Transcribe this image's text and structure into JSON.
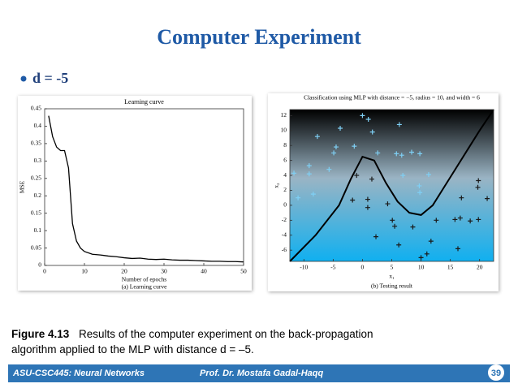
{
  "slide": {
    "title": "Computer Experiment",
    "bullet": "d = -5"
  },
  "chart_data": [
    {
      "type": "line",
      "title": "Learning curve",
      "x_label": "Number of epochs",
      "y_label": "MSE",
      "caption": "(a) Learning curve",
      "color": "#000000",
      "x": [
        1,
        2,
        3,
        4,
        5,
        6,
        7,
        8,
        9,
        10,
        12,
        14,
        16,
        18,
        20,
        22,
        24,
        26,
        28,
        30,
        32,
        34,
        36,
        38,
        40,
        42,
        44,
        46,
        48,
        50
      ],
      "values": [
        0.43,
        0.37,
        0.34,
        0.33,
        0.33,
        0.28,
        0.12,
        0.07,
        0.05,
        0.04,
        0.032,
        0.03,
        0.027,
        0.025,
        0.022,
        0.02,
        0.021,
        0.018,
        0.017,
        0.018,
        0.016,
        0.015,
        0.015,
        0.014,
        0.013,
        0.012,
        0.012,
        0.011,
        0.011,
        0.01
      ],
      "xlim": [
        0,
        50
      ],
      "xticks": [
        0,
        10,
        20,
        30,
        40,
        50
      ],
      "ylim": [
        0,
        0.45
      ],
      "yticks": [
        0,
        0.05,
        0.1,
        0.15,
        0.2,
        0.25,
        0.3,
        0.35,
        0.4,
        0.45
      ]
    },
    {
      "type": "scatter",
      "title": "Classification using MLP with distance = −5, radius = 10, and width = 6",
      "x_label": "x₁",
      "y_label": "x₂",
      "caption": "(b) Testing result",
      "xlim": [
        -12.4,
        22.4
      ],
      "xticks": [
        -10,
        -5,
        0,
        5,
        10,
        15,
        20
      ],
      "ylim": [
        -7.5,
        12.8
      ],
      "yticks": [
        -6,
        -4,
        -2,
        0,
        2,
        4,
        6,
        8,
        10,
        12
      ],
      "series": [
        {
          "color": "#7fd0f5",
          "x": [
            9.8,
            11.3,
            6.9,
            8.4,
            5.8,
            6.3,
            2.6,
            1.7,
            0,
            -1.4,
            -3.8,
            -4.5,
            -7.7,
            -5.7,
            -9.1,
            -11.7,
            -8.4,
            -11,
            6.7,
            1.0,
            -4.9,
            9.7,
            9.8,
            -9.1
          ],
          "values": [
            1.7,
            4.1,
            4.0,
            7.1,
            6.9,
            10.8,
            7.0,
            9.8,
            12,
            7.9,
            10.3,
            7.8,
            9.2,
            4.8,
            5.3,
            4.3,
            1.5,
            1.0,
            6.7,
            11.5,
            7.0,
            2.6,
            6.9,
            4.2
          ]
        },
        {
          "color": "#1a1a1a",
          "x": [
            19.8,
            21.3,
            16.9,
            18.4,
            15.8,
            16.3,
            12.6,
            11.7,
            10,
            8.6,
            6.2,
            5.5,
            2.3,
            4.3,
            0.9,
            -1.7,
            1.6,
            -1,
            16.7,
            11,
            5.1,
            19.7,
            19.8,
            0.9
          ],
          "values": [
            3.3,
            0.9,
            1.0,
            -2.1,
            -1.9,
            -5.8,
            -2.0,
            -4.8,
            -7,
            -2.9,
            -5.3,
            -2.8,
            -4.2,
            0.2,
            -0.3,
            0.7,
            3.5,
            4.0,
            -1.7,
            -6.5,
            -2.0,
            2.4,
            -1.9,
            0.8
          ]
        }
      ],
      "boundary": {
        "color": "#000000",
        "x": [
          -12.4,
          -8,
          -4,
          -2,
          0,
          2,
          4,
          6,
          8,
          10,
          12,
          14,
          16,
          18,
          20,
          22.4
        ],
        "values": [
          -7.5,
          -4,
          0,
          3.5,
          6.5,
          6,
          3,
          0.5,
          -1,
          -1.3,
          0,
          2.5,
          5,
          7.5,
          10,
          12.8
        ]
      }
    }
  ],
  "figure_caption": {
    "label": "Figure 4.13",
    "text": "Results of the computer experiment on the back-propagation algorithm applied to the MLP with distance d = –5."
  },
  "footer": {
    "course": "ASU-CSC445: Neural Networks",
    "author": "Prof. Dr. Mostafa Gadal-Haqq",
    "page": "39"
  }
}
